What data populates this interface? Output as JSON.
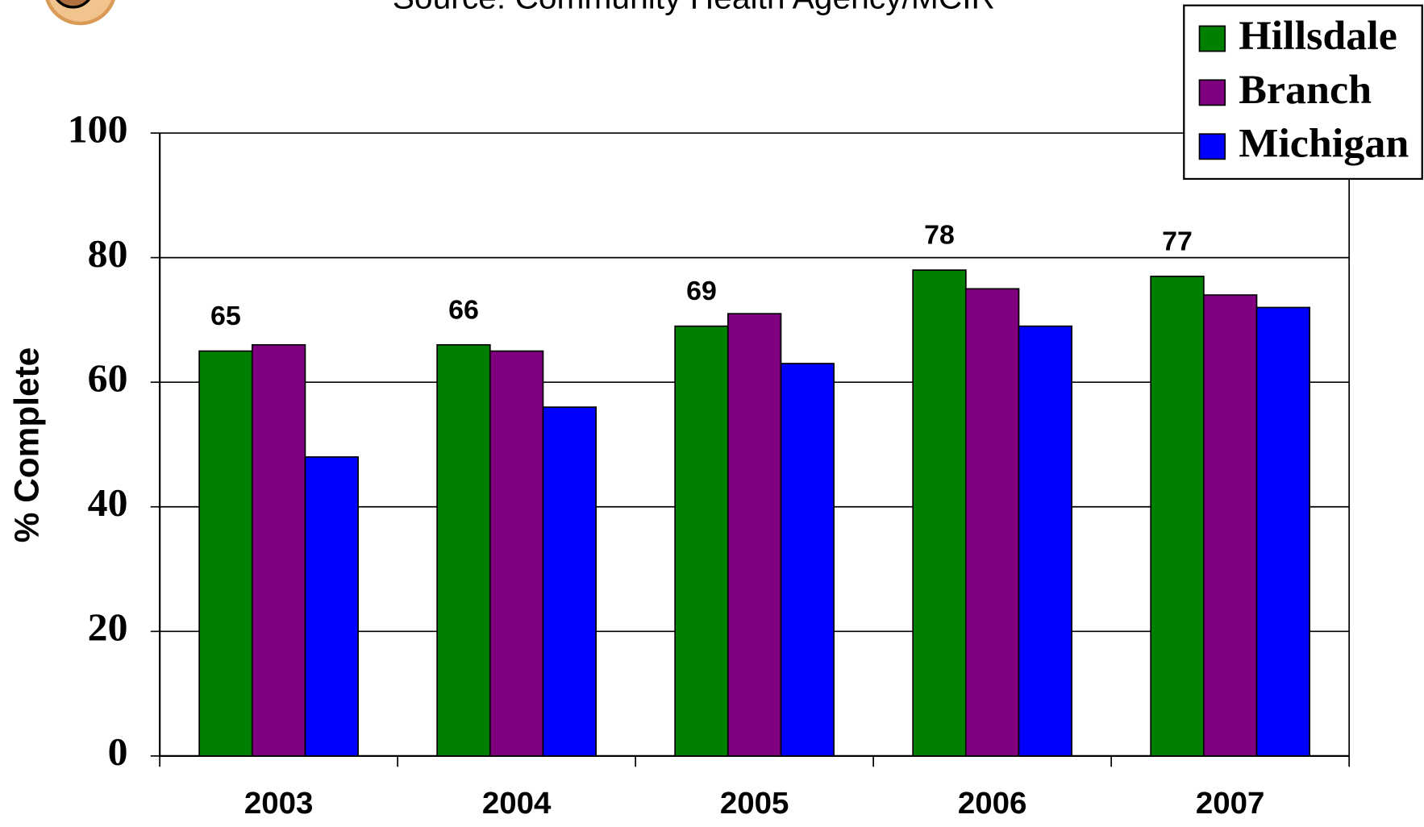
{
  "chart_data": {
    "type": "bar",
    "subtitle": "Source: Community Health Agency/MCIR",
    "y_label": "% Complete",
    "categories": [
      "2003",
      "2004",
      "2005",
      "2006",
      "2007"
    ],
    "series": [
      {
        "name": "Hillsdale",
        "color": "#008000",
        "values": [
          65,
          66,
          69,
          78,
          77
        ],
        "show_labels": true
      },
      {
        "name": "Branch",
        "color": "#800080",
        "values": [
          66,
          65,
          71,
          75,
          74
        ],
        "show_labels": false
      },
      {
        "name": "Michigan",
        "color": "#0000ff",
        "values": [
          48,
          56,
          63,
          69,
          72
        ],
        "show_labels": false
      }
    ],
    "ylim": [
      0,
      100
    ],
    "yticks": [
      0,
      20,
      40,
      60,
      80,
      100
    ],
    "grid": true,
    "legend": "top-right"
  }
}
